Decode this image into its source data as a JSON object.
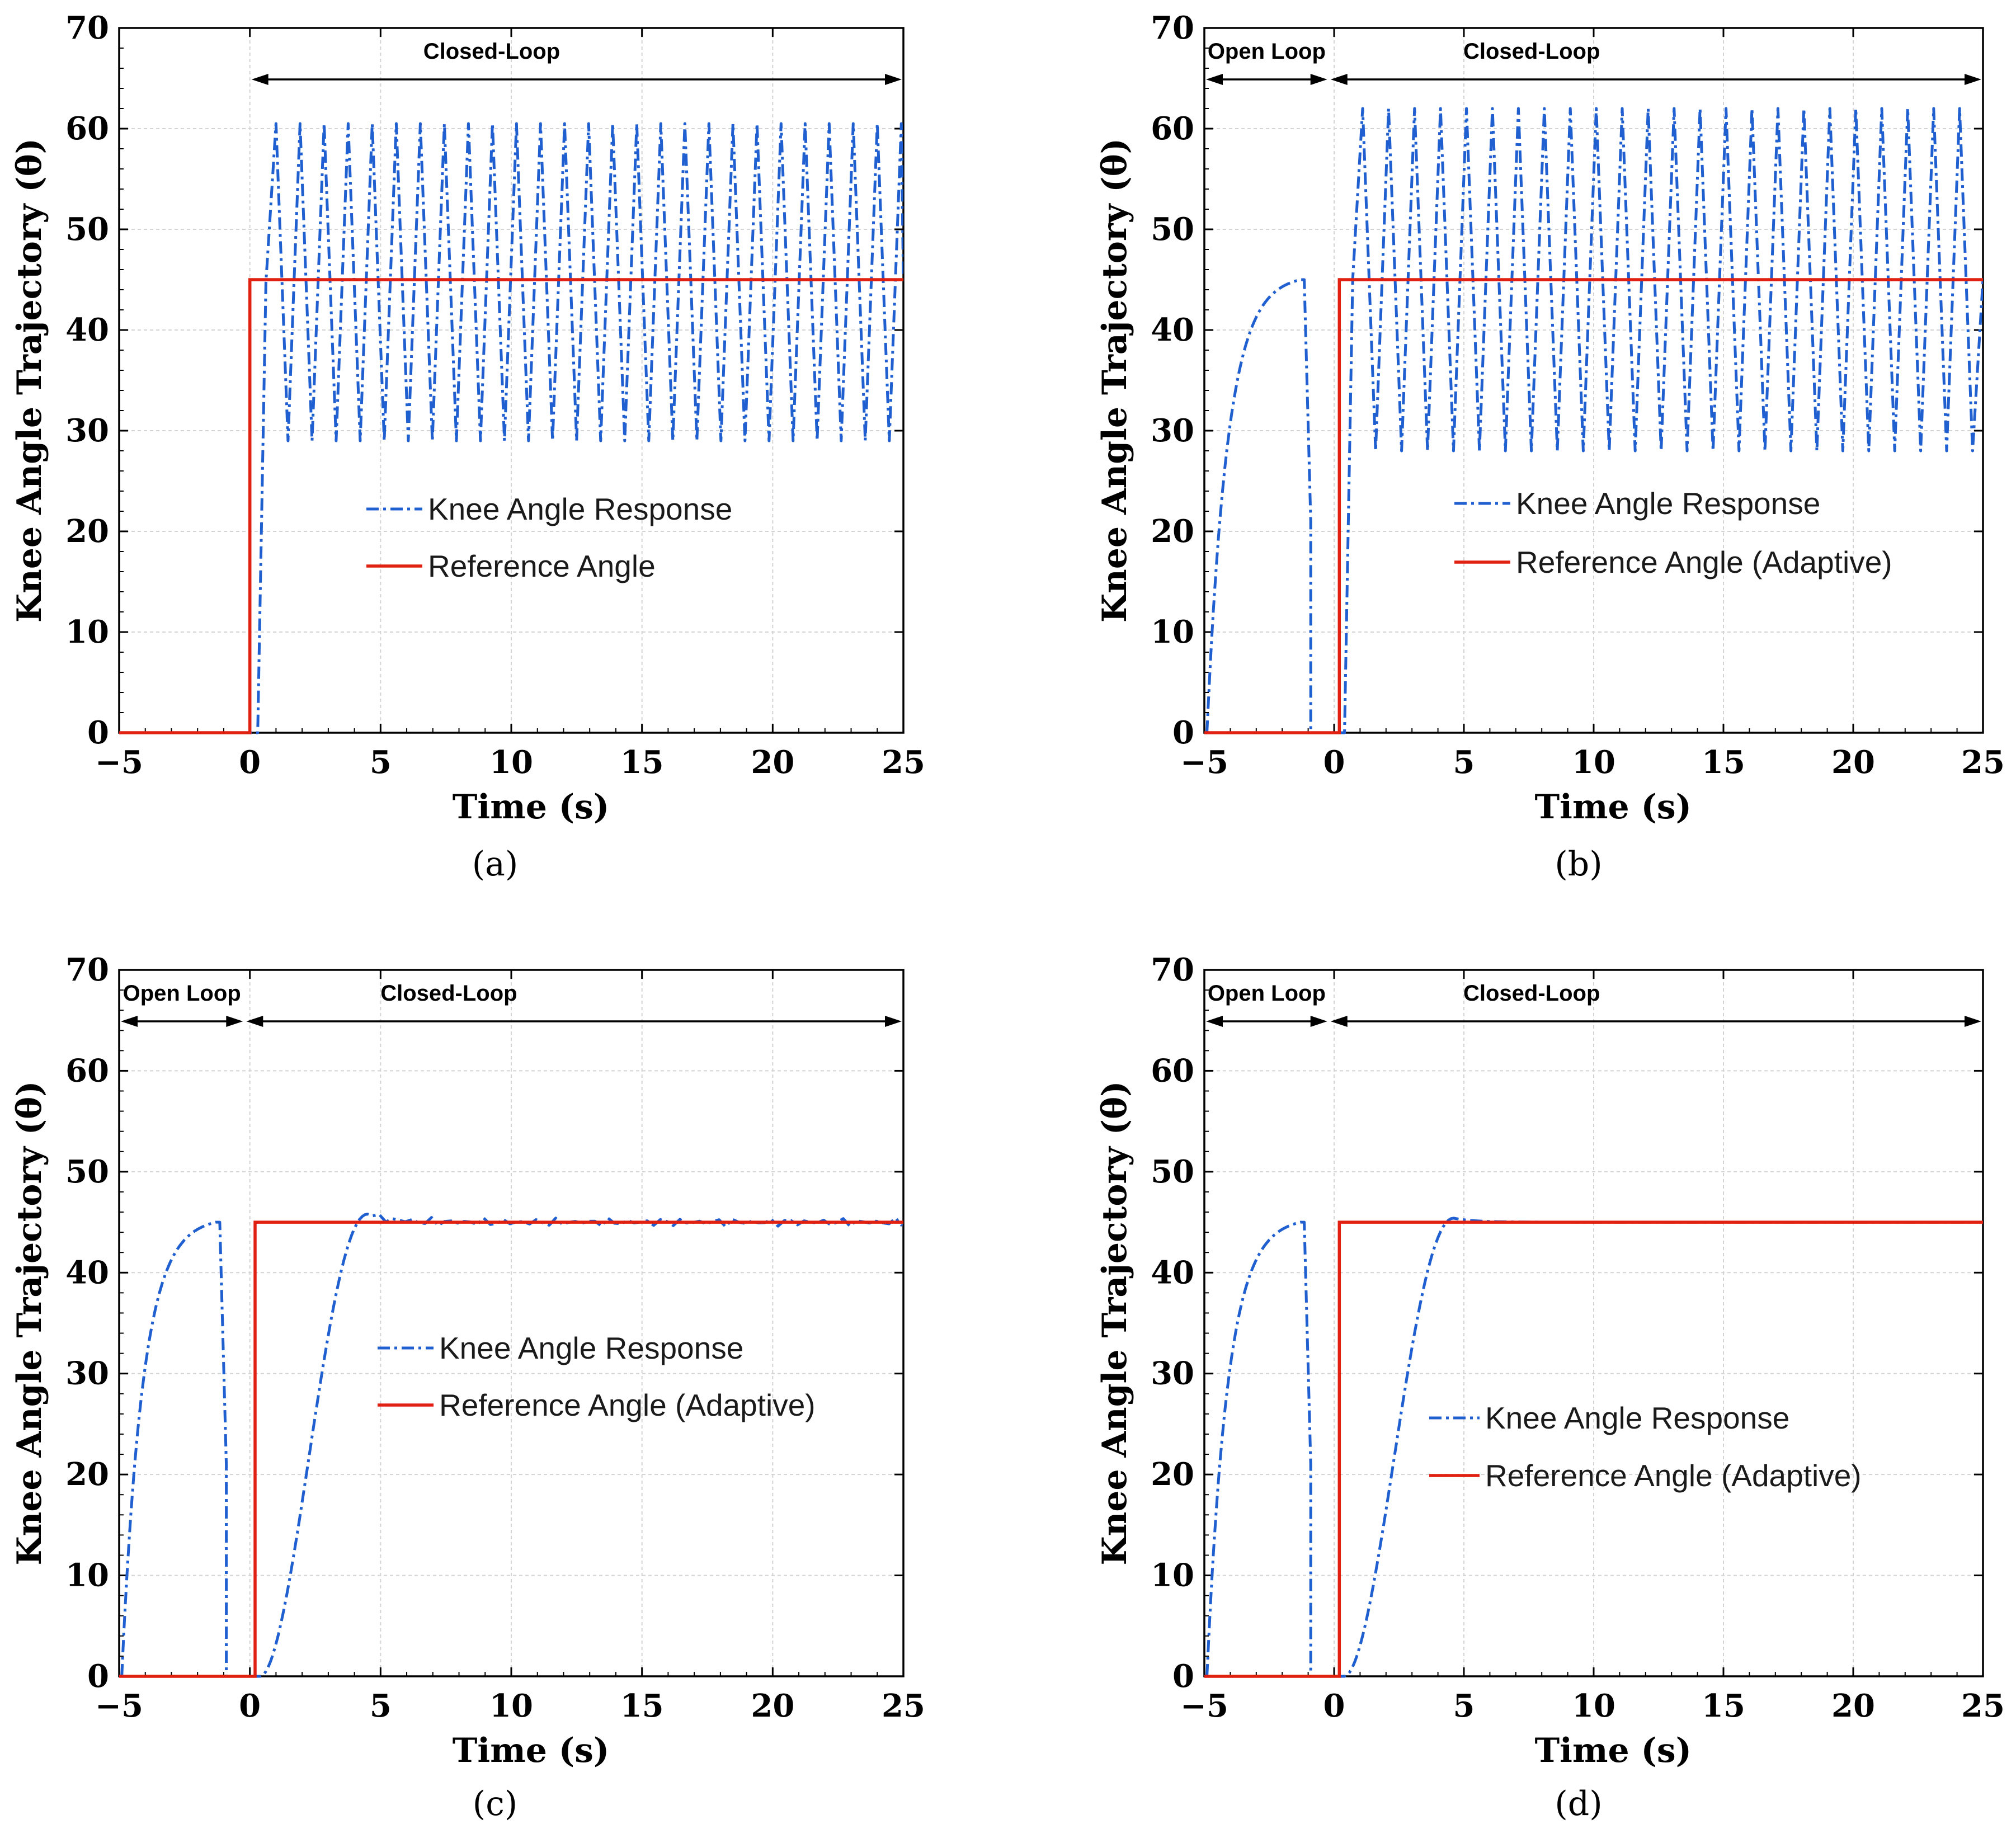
{
  "colors": {
    "knee": "#1f5fd0",
    "reference": "#e02010"
  },
  "chart_data": [
    {
      "type": "line",
      "panel": "a",
      "caption": "(a)",
      "xlabel": "Time (s)",
      "ylabel": "Knee Angle Trajectory (θ)",
      "xlim": [
        -5,
        25
      ],
      "ylim": [
        0,
        70
      ],
      "xticks": [
        "−5",
        "0",
        "5",
        "10",
        "15",
        "20",
        "25"
      ],
      "yticks": [
        "0",
        "10",
        "20",
        "30",
        "40",
        "50",
        "60",
        "70"
      ],
      "phases": [
        {
          "label": "Closed-Loop",
          "start": 0,
          "end": 25
        }
      ],
      "series": [
        {
          "name": "Knee Angle Response",
          "style": "dash-dot",
          "color": "#1f5fd0",
          "model": {
            "kind": "oscillation",
            "onset": 0.3,
            "first_peak": 1.0,
            "period": 0.92,
            "max": 60.5,
            "min": 29,
            "end": 25
          }
        },
        {
          "name": "Reference Angle",
          "style": "solid",
          "color": "#e02010",
          "model": {
            "kind": "step",
            "step_time": 0,
            "low": 0,
            "high": 45
          }
        }
      ],
      "legend": [
        "Knee Angle Response",
        "Reference Angle"
      ]
    },
    {
      "type": "line",
      "panel": "b",
      "caption": "(b)",
      "xlabel": "Time (s)",
      "ylabel": "Knee Angle Trajectory (θ)",
      "xlim": [
        -5,
        25
      ],
      "ylim": [
        0,
        70
      ],
      "xticks": [
        "−5",
        "0",
        "5",
        "10",
        "15",
        "20",
        "25"
      ],
      "yticks": [
        "0",
        "10",
        "20",
        "30",
        "40",
        "50",
        "60",
        "70"
      ],
      "phases": [
        {
          "label": "Open Loop",
          "start": -5,
          "end": -0.2
        },
        {
          "label": "Closed-Loop",
          "start": -0.2,
          "end": 25
        }
      ],
      "series": [
        {
          "name": "Knee Angle Response",
          "style": "dash-dot",
          "color": "#1f5fd0",
          "model": {
            "kind": "oscillation",
            "onset": 0.4,
            "first_peak": 1.1,
            "period": 1.0,
            "max": 62,
            "min": 28,
            "end": 25,
            "open_loop": {
              "start": -4.9,
              "peak_time": -1.3,
              "value": 45,
              "tau": 0.8,
              "drop_time": -0.9,
              "drop_value": 21
            }
          }
        },
        {
          "name": "Reference Angle (Adaptive)",
          "style": "solid",
          "color": "#e02010",
          "model": {
            "kind": "step",
            "step_time": 0.2,
            "low": 0,
            "high": 45,
            "start": -5
          }
        }
      ],
      "legend": [
        "Knee Angle Response",
        "Reference Angle (Adaptive)"
      ]
    },
    {
      "type": "line",
      "panel": "c",
      "caption": "(c)",
      "xlabel": "Time (s)",
      "ylabel": "Knee Angle Trajectory (θ)",
      "xlim": [
        -5,
        25
      ],
      "ylim": [
        0,
        70
      ],
      "xticks": [
        "−5",
        "0",
        "5",
        "10",
        "15",
        "20",
        "25"
      ],
      "yticks": [
        "0",
        "10",
        "20",
        "30",
        "40",
        "50",
        "60",
        "70"
      ],
      "phases": [
        {
          "label": "Open Loop",
          "start": -5,
          "end": -0.2
        },
        {
          "label": "Closed-Loop",
          "start": -0.2,
          "end": 25
        }
      ],
      "series": [
        {
          "name": "Knee Angle Response",
          "style": "dash-dot",
          "color": "#1f5fd0",
          "model": {
            "kind": "settle",
            "onset": 0.4,
            "rise_end": 4.5,
            "peak": 45.8,
            "settle": 45,
            "ripple": 0.45,
            "end": 25,
            "open_loop": {
              "start": -4.9,
              "peak_time": -1.3,
              "value": 45,
              "tau": 0.8,
              "drop_time": -0.9,
              "drop_value": 21
            }
          }
        },
        {
          "name": "Reference Angle (Adaptive)",
          "style": "solid",
          "color": "#e02010",
          "model": {
            "kind": "step",
            "step_time": 0.2,
            "low": 0,
            "high": 45,
            "start": -5
          }
        }
      ],
      "legend": [
        "Knee Angle Response",
        "Reference Angle (Adaptive)"
      ]
    },
    {
      "type": "line",
      "panel": "d",
      "caption": "(d)",
      "xlabel": "Time (s)",
      "ylabel": "Knee Angle Trajectory (θ)",
      "xlim": [
        -5,
        25
      ],
      "ylim": [
        0,
        70
      ],
      "xticks": [
        "−5",
        "0",
        "5",
        "10",
        "15",
        "20",
        "25"
      ],
      "yticks": [
        "0",
        "10",
        "20",
        "30",
        "40",
        "50",
        "60",
        "70"
      ],
      "phases": [
        {
          "label": "Open Loop",
          "start": -5,
          "end": -0.2
        },
        {
          "label": "Closed-Loop",
          "start": -0.2,
          "end": 25
        }
      ],
      "series": [
        {
          "name": "Knee Angle Response",
          "style": "dash-dot",
          "color": "#1f5fd0",
          "model": {
            "kind": "settle",
            "onset": 0.4,
            "rise_end": 4.6,
            "peak": 45.4,
            "settle": 45,
            "ripple": 0,
            "end": 25,
            "open_loop": {
              "start": -4.9,
              "peak_time": -1.3,
              "value": 45,
              "tau": 0.8,
              "drop_time": -0.9,
              "drop_value": 21
            }
          }
        },
        {
          "name": "Reference Angle (Adaptive)",
          "style": "solid",
          "color": "#e02010",
          "model": {
            "kind": "step",
            "step_time": 0.2,
            "low": 0,
            "high": 45,
            "start": -5
          }
        }
      ],
      "legend": [
        "Knee Angle Response",
        "Reference Angle (Adaptive)"
      ]
    }
  ]
}
